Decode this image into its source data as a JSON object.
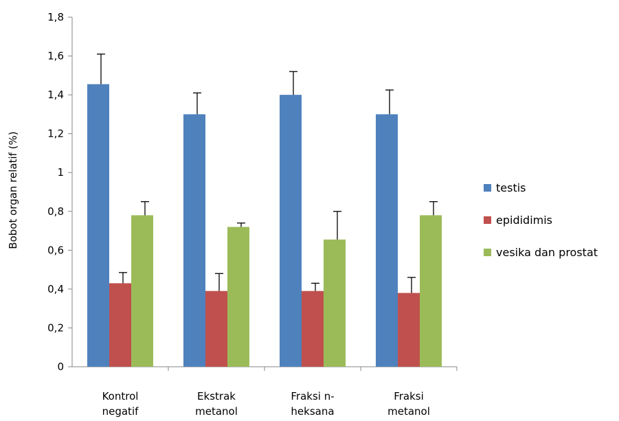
{
  "chart_data": {
    "type": "bar",
    "title": "",
    "xlabel": "",
    "ylabel": "Bobot organ relatif (%)",
    "ylim": [
      0,
      1.8
    ],
    "yticks": [
      "0",
      "0,2",
      "0,4",
      "0,6",
      "0,8",
      "1",
      "1,2",
      "1,4",
      "1,6",
      "1,8"
    ],
    "categories": [
      [
        "Kontrol",
        "negatif"
      ],
      [
        "Ekstrak",
        "metanol"
      ],
      [
        "Fraksi n-",
        "heksana"
      ],
      [
        "Fraksi",
        "metanol"
      ]
    ],
    "series": [
      {
        "name": "testis",
        "color": "#4f81bd",
        "values": [
          1.455,
          1.3,
          1.4,
          1.3
        ],
        "errors": [
          0.155,
          0.11,
          0.12,
          0.125
        ]
      },
      {
        "name": "epididimis",
        "color": "#c0504d",
        "values": [
          0.43,
          0.39,
          0.39,
          0.38
        ],
        "errors": [
          0.055,
          0.09,
          0.04,
          0.08
        ]
      },
      {
        "name": "vesika dan prostat",
        "color": "#9bbb59",
        "values": [
          0.78,
          0.72,
          0.655,
          0.78
        ],
        "errors": [
          0.07,
          0.02,
          0.145,
          0.07
        ]
      }
    ],
    "error_bars": true,
    "grid": false,
    "legend_position": "right"
  }
}
